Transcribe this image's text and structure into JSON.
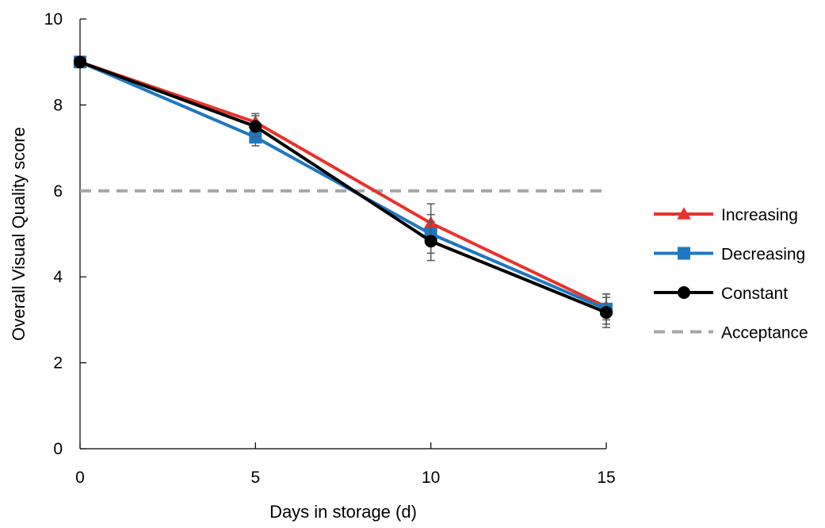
{
  "chart_data": {
    "type": "line",
    "title": "",
    "xlabel": "Days in storage (d)",
    "ylabel": "Overall Visual Quality score",
    "x": [
      0,
      5,
      10,
      15
    ],
    "xlim": [
      0,
      15
    ],
    "ylim": [
      0,
      10
    ],
    "xticks": [
      "0",
      "5",
      "10",
      "15"
    ],
    "yticks": [
      "0",
      "2",
      "4",
      "6",
      "8",
      "10"
    ],
    "grid": false,
    "legend_position": "right",
    "series": [
      {
        "name": "Increasing",
        "color": "#e8322b",
        "marker": "triangle",
        "values": [
          9.0,
          7.6,
          5.25,
          3.3
        ],
        "errors": [
          0.1,
          0.2,
          0.45,
          0.3
        ]
      },
      {
        "name": "Decreasing",
        "color": "#1f77c0",
        "marker": "square",
        "values": [
          9.0,
          7.25,
          5.0,
          3.25
        ],
        "errors": [
          0.05,
          0.2,
          0.45,
          0.35
        ]
      },
      {
        "name": "Constant",
        "color": "#000000",
        "marker": "circle",
        "values": [
          9.0,
          7.5,
          4.83,
          3.17
        ],
        "errors": [
          0.05,
          0.25,
          0.45,
          0.35
        ]
      }
    ],
    "reference_line": {
      "name": "Acceptance",
      "value": 6,
      "color": "#a6a6a6",
      "style": "dashed"
    }
  }
}
